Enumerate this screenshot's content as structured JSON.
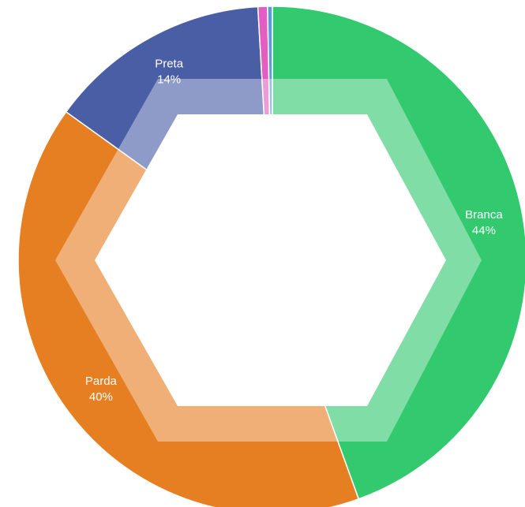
{
  "chart_data": {
    "type": "donut",
    "categories": [
      "Branca",
      "Parda",
      "Preta",
      null,
      null
    ],
    "values": [
      44,
      40,
      14,
      0.6,
      0.3
    ],
    "value_labels": [
      "44%",
      "40%",
      "14%",
      null,
      null
    ],
    "colors": [
      "#33c96f",
      "#e67e22",
      "#4a5ea6",
      "#e25fc1",
      "#5b9bd5"
    ]
  }
}
